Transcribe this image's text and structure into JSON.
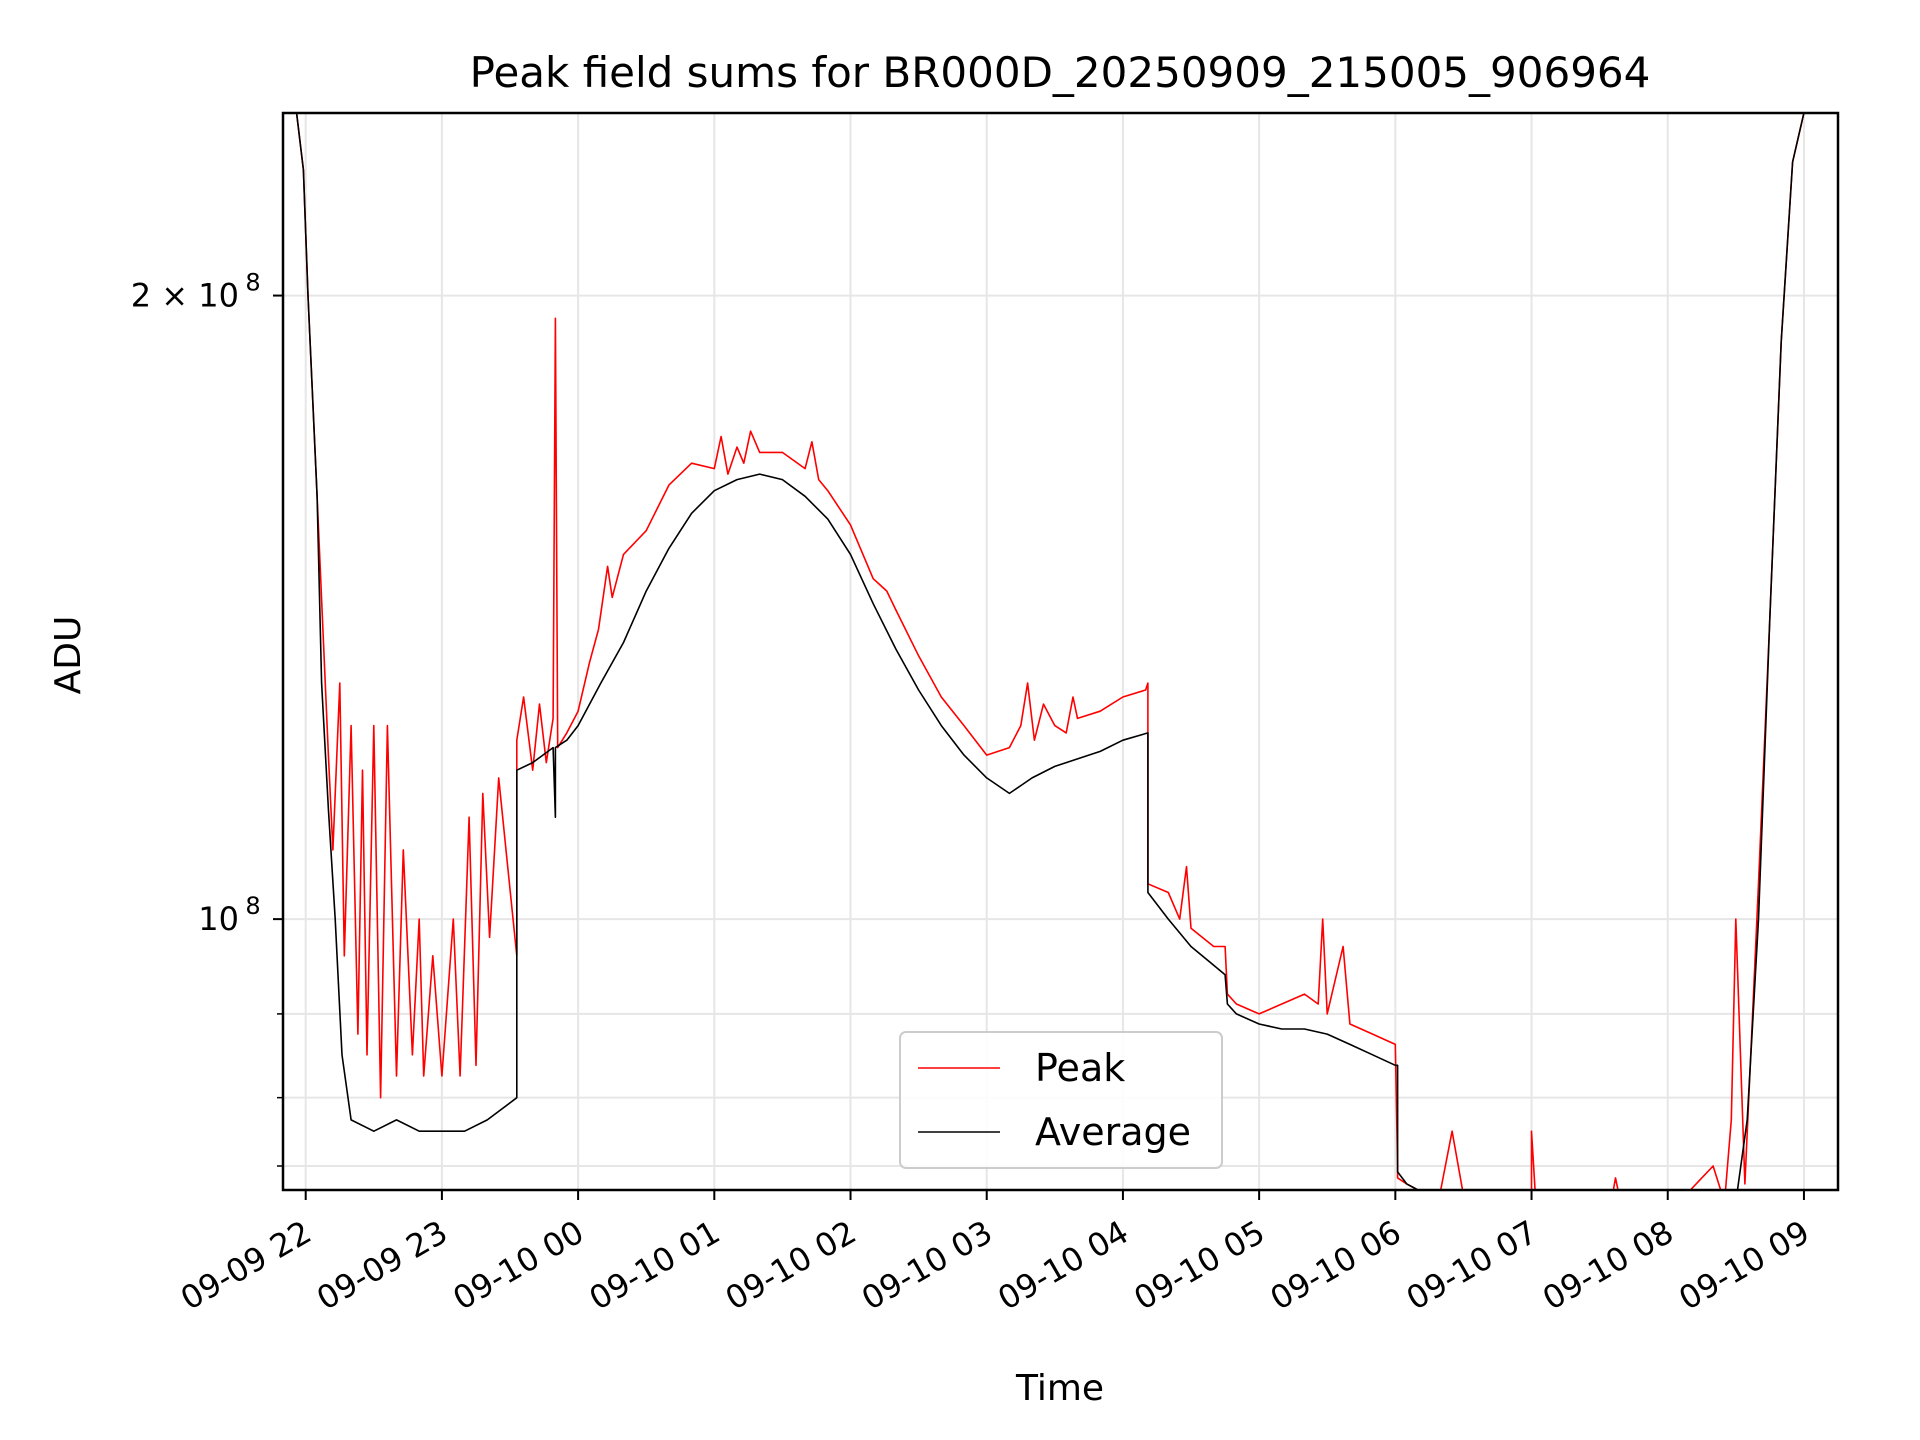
{
  "chart_data": {
    "type": "line",
    "title": "Peak field sums for BR000D_20250909_215005_906964",
    "xlabel": "Time",
    "ylabel": "ADU",
    "y_scale": "log",
    "ylim": [
      74000000,
      245000000
    ],
    "xlim": [
      "2025-09-09 21:50",
      "2025-09-10 09:15"
    ],
    "grid": true,
    "legend_position": "lower-center",
    "x_ticks": [
      {
        "value": "2025-09-09 22:00",
        "label": "09-09 22"
      },
      {
        "value": "2025-09-09 23:00",
        "label": "09-09 23"
      },
      {
        "value": "2025-09-10 00:00",
        "label": "09-10 00"
      },
      {
        "value": "2025-09-10 01:00",
        "label": "09-10 01"
      },
      {
        "value": "2025-09-10 02:00",
        "label": "09-10 02"
      },
      {
        "value": "2025-09-10 03:00",
        "label": "09-10 03"
      },
      {
        "value": "2025-09-10 04:00",
        "label": "09-10 04"
      },
      {
        "value": "2025-09-10 05:00",
        "label": "09-10 05"
      },
      {
        "value": "2025-09-10 06:00",
        "label": "09-10 06"
      },
      {
        "value": "2025-09-10 07:00",
        "label": "09-10 07"
      },
      {
        "value": "2025-09-10 08:00",
        "label": "09-10 08"
      },
      {
        "value": "2025-09-10 09:00",
        "label": "09-10 09"
      }
    ],
    "y_major_ticks": [
      {
        "value": 100000000,
        "base": "10",
        "exp": "8"
      },
      {
        "value": 200000000,
        "base": "2 × 10",
        "exp": "8"
      }
    ],
    "y_minor_ticks": [
      76000000,
      82000000,
      90000000
    ],
    "series": [
      {
        "name": "Peak",
        "color": "#ff0000",
        "x": [
          "2025-09-09 21:50",
          "2025-09-09 21:56",
          "2025-09-09 21:59",
          "2025-09-09 22:01",
          "2025-09-09 22:05",
          "2025-09-09 22:10",
          "2025-09-09 22:12",
          "2025-09-09 22:15",
          "2025-09-09 22:17",
          "2025-09-09 22:20",
          "2025-09-09 22:23",
          "2025-09-09 22:25",
          "2025-09-09 22:27",
          "2025-09-09 22:30",
          "2025-09-09 22:33",
          "2025-09-09 22:36",
          "2025-09-09 22:40",
          "2025-09-09 22:43",
          "2025-09-09 22:47",
          "2025-09-09 22:50",
          "2025-09-09 22:52",
          "2025-09-09 22:56",
          "2025-09-09 23:00",
          "2025-09-09 23:05",
          "2025-09-09 23:08",
          "2025-09-09 23:12",
          "2025-09-09 23:15",
          "2025-09-09 23:18",
          "2025-09-09 23:21",
          "2025-09-09 23:25",
          "2025-09-09 23:29",
          "2025-09-09 23:33",
          "2025-09-09 23:33",
          "2025-09-09 23:36",
          "2025-09-09 23:40",
          "2025-09-09 23:43",
          "2025-09-09 23:46",
          "2025-09-09 23:49",
          "2025-09-09 23:50",
          "2025-09-09 23:51",
          "2025-09-09 23:55",
          "2025-09-10 00:00",
          "2025-09-10 00:05",
          "2025-09-10 00:09",
          "2025-09-10 00:13",
          "2025-09-10 00:15",
          "2025-09-10 00:20",
          "2025-09-10 00:30",
          "2025-09-10 00:40",
          "2025-09-10 00:50",
          "2025-09-10 01:00",
          "2025-09-10 01:03",
          "2025-09-10 01:06",
          "2025-09-10 01:10",
          "2025-09-10 01:13",
          "2025-09-10 01:16",
          "2025-09-10 01:20",
          "2025-09-10 01:30",
          "2025-09-10 01:40",
          "2025-09-10 01:43",
          "2025-09-10 01:46",
          "2025-09-10 01:50",
          "2025-09-10 02:00",
          "2025-09-10 02:10",
          "2025-09-10 02:13",
          "2025-09-10 02:16",
          "2025-09-10 02:20",
          "2025-09-10 02:30",
          "2025-09-10 02:40",
          "2025-09-10 02:50",
          "2025-09-10 03:00",
          "2025-09-10 03:10",
          "2025-09-10 03:15",
          "2025-09-10 03:18",
          "2025-09-10 03:21",
          "2025-09-10 03:25",
          "2025-09-10 03:30",
          "2025-09-10 03:35",
          "2025-09-10 03:38",
          "2025-09-10 03:40",
          "2025-09-10 03:50",
          "2025-09-10 04:00",
          "2025-09-10 04:10",
          "2025-09-10 04:11",
          "2025-09-10 04:11",
          "2025-09-10 04:20",
          "2025-09-10 04:25",
          "2025-09-10 04:28",
          "2025-09-10 04:30",
          "2025-09-10 04:40",
          "2025-09-10 04:45",
          "2025-09-10 04:46",
          "2025-09-10 04:50",
          "2025-09-10 05:00",
          "2025-09-10 05:10",
          "2025-09-10 05:20",
          "2025-09-10 05:26",
          "2025-09-10 05:28",
          "2025-09-10 05:30",
          "2025-09-10 05:37",
          "2025-09-10 05:40",
          "2025-09-10 05:50",
          "2025-09-10 06:00",
          "2025-09-10 06:01",
          "2025-09-10 06:01",
          "2025-09-10 06:05",
          "2025-09-10 06:10",
          "2025-09-10 06:20",
          "2025-09-10 06:25",
          "2025-09-10 06:30",
          "2025-09-10 06:40",
          "2025-09-10 06:50",
          "2025-09-10 07:00",
          "2025-09-10 07:00",
          "2025-09-10 07:02",
          "2025-09-10 07:10",
          "2025-09-10 07:20",
          "2025-09-10 07:30",
          "2025-09-10 07:35",
          "2025-09-10 07:37",
          "2025-09-10 07:40",
          "2025-09-10 07:45",
          "2025-09-10 07:50",
          "2025-09-10 07:55",
          "2025-09-10 08:00",
          "2025-09-10 08:05",
          "2025-09-10 08:10",
          "2025-09-10 08:15",
          "2025-09-10 08:20",
          "2025-09-10 08:25",
          "2025-09-10 08:28",
          "2025-09-10 08:30",
          "2025-09-10 08:34",
          "2025-09-10 08:40",
          "2025-09-10 08:45",
          "2025-09-10 08:50",
          "2025-09-10 08:55",
          "2025-09-10 09:00",
          "2025-09-10 09:10"
        ],
        "y": [
          245000000,
          245000000,
          230000000,
          200000000,
          160000000,
          120000000,
          108000000,
          130000000,
          96000000,
          124000000,
          88000000,
          118000000,
          86000000,
          124000000,
          82000000,
          124000000,
          84000000,
          108000000,
          86000000,
          100000000,
          84000000,
          96000000,
          84000000,
          100000000,
          84000000,
          112000000,
          85000000,
          115000000,
          98000000,
          117000000,
          106000000,
          96000000,
          122000000,
          128000000,
          118000000,
          127000000,
          119000000,
          125000000,
          195000000,
          121000000,
          123000000,
          126000000,
          133000000,
          138000000,
          148000000,
          143000000,
          150000000,
          154000000,
          162000000,
          166000000,
          165000000,
          171000000,
          164000000,
          169000000,
          166000000,
          172000000,
          168000000,
          168000000,
          165000000,
          170000000,
          163000000,
          161000000,
          155000000,
          146000000,
          145000000,
          144000000,
          141000000,
          134000000,
          128000000,
          124000000,
          120000000,
          121000000,
          124000000,
          130000000,
          122000000,
          127000000,
          124000000,
          123000000,
          128000000,
          125000000,
          126000000,
          128000000,
          129000000,
          130000000,
          104000000,
          103000000,
          100000000,
          106000000,
          99000000,
          97000000,
          97000000,
          92000000,
          91000000,
          90000000,
          91000000,
          92000000,
          91000000,
          100000000,
          90000000,
          97000000,
          89000000,
          88000000,
          87000000,
          76000000,
          75000000,
          74500000,
          74000000,
          74000000,
          79000000,
          73600000,
          73300000,
          73000000,
          72700000,
          79000000,
          72600000,
          72500000,
          72400000,
          72700000,
          72900000,
          75000000,
          72300000,
          73200000,
          73400000,
          73500000,
          73100000,
          72700000,
          74000000,
          75000000,
          76000000,
          73000000,
          80000000,
          100000000,
          74500000,
          104000000,
          140000000,
          190000000,
          232000000,
          245000000,
          245000000
        ]
      },
      {
        "name": "Average",
        "color": "#000000",
        "x": [
          "2025-09-09 21:50",
          "2025-09-09 21:56",
          "2025-09-09 21:59",
          "2025-09-09 22:01",
          "2025-09-09 22:05",
          "2025-09-09 22:07",
          "2025-09-09 22:10",
          "2025-09-09 22:13",
          "2025-09-09 22:16",
          "2025-09-09 22:20",
          "2025-09-09 22:30",
          "2025-09-09 22:40",
          "2025-09-09 22:50",
          "2025-09-09 23:00",
          "2025-09-09 23:10",
          "2025-09-09 23:20",
          "2025-09-09 23:33",
          "2025-09-09 23:33",
          "2025-09-09 23:40",
          "2025-09-09 23:49",
          "2025-09-09 23:50",
          "2025-09-09 23:50",
          "2025-09-09 23:55",
          "2025-09-10 00:00",
          "2025-09-10 00:10",
          "2025-09-10 00:20",
          "2025-09-10 00:30",
          "2025-09-10 00:40",
          "2025-09-10 00:50",
          "2025-09-10 01:00",
          "2025-09-10 01:10",
          "2025-09-10 01:20",
          "2025-09-10 01:30",
          "2025-09-10 01:40",
          "2025-09-10 01:50",
          "2025-09-10 02:00",
          "2025-09-10 02:10",
          "2025-09-10 02:20",
          "2025-09-10 02:30",
          "2025-09-10 02:40",
          "2025-09-10 02:50",
          "2025-09-10 03:00",
          "2025-09-10 03:10",
          "2025-09-10 03:15",
          "2025-09-10 03:20",
          "2025-09-10 03:30",
          "2025-09-10 03:40",
          "2025-09-10 03:50",
          "2025-09-10 04:00",
          "2025-09-10 04:11",
          "2025-09-10 04:11",
          "2025-09-10 04:20",
          "2025-09-10 04:30",
          "2025-09-10 04:40",
          "2025-09-10 04:45",
          "2025-09-10 04:46",
          "2025-09-10 04:50",
          "2025-09-10 05:00",
          "2025-09-10 05:10",
          "2025-09-10 05:20",
          "2025-09-10 05:30",
          "2025-09-10 05:40",
          "2025-09-10 05:50",
          "2025-09-10 06:00",
          "2025-09-10 06:01",
          "2025-09-10 06:01",
          "2025-09-10 06:05",
          "2025-09-10 06:10",
          "2025-09-10 06:20",
          "2025-09-10 06:30",
          "2025-09-10 06:40",
          "2025-09-10 06:50",
          "2025-09-10 07:00",
          "2025-09-10 07:10",
          "2025-09-10 07:20",
          "2025-09-10 07:30",
          "2025-09-10 07:40",
          "2025-09-10 07:50",
          "2025-09-10 08:00",
          "2025-09-10 08:10",
          "2025-09-10 08:20",
          "2025-09-10 08:25",
          "2025-09-10 08:30",
          "2025-09-10 08:35",
          "2025-09-10 08:40",
          "2025-09-10 08:45",
          "2025-09-10 08:50",
          "2025-09-10 08:55",
          "2025-09-10 09:00",
          "2025-09-10 09:10"
        ],
        "y": [
          245000000,
          245000000,
          230000000,
          200000000,
          160000000,
          130000000,
          113000000,
          100000000,
          86000000,
          80000000,
          79000000,
          80000000,
          79000000,
          79000000,
          79000000,
          80000000,
          82000000,
          118000000,
          119000000,
          121000000,
          112000000,
          121000000,
          122000000,
          124000000,
          130000000,
          136000000,
          144000000,
          151000000,
          157000000,
          161000000,
          163000000,
          164000000,
          163000000,
          160000000,
          156000000,
          150000000,
          142000000,
          135000000,
          129000000,
          124000000,
          120000000,
          117000000,
          115000000,
          116000000,
          117000000,
          118500000,
          119500000,
          120500000,
          122000000,
          123000000,
          103000000,
          100000000,
          97000000,
          95000000,
          94000000,
          91000000,
          90000000,
          89000000,
          88500000,
          88500000,
          88000000,
          87000000,
          86000000,
          85000000,
          85000000,
          75500000,
          74500000,
          74000000,
          73600000,
          73300000,
          73000000,
          72700000,
          72500000,
          72300000,
          72200000,
          72200000,
          72100000,
          72000000,
          72000000,
          71900000,
          72000000,
          72300000,
          73000000,
          80000000,
          100000000,
          140000000,
          190000000,
          232000000,
          245000000,
          245000000
        ]
      }
    ]
  }
}
